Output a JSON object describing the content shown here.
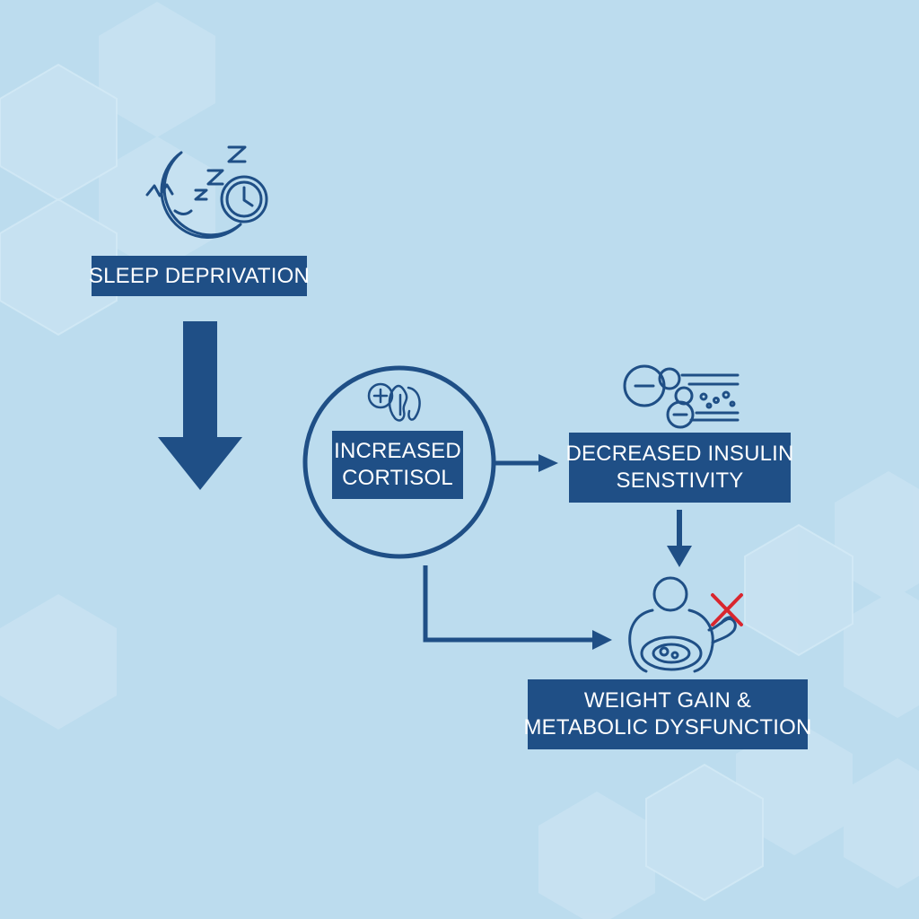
{
  "colors": {
    "background": "#bcdcee",
    "primary": "#1f4f86",
    "label_text": "#ffffff",
    "alert": "#d9262e"
  },
  "nodes": {
    "sleep": {
      "icon": "moon-sleep-clock-icon",
      "label": "SLEEP DEPRIVATION"
    },
    "cortisol": {
      "icon": "adrenal-gland-icon",
      "line1": "INCREASED",
      "line2": "CORTISOL"
    },
    "insulin": {
      "icon": "insulin-receptor-blood-vessel-icon",
      "line1": "DECREASED INSULIN",
      "line2": "SENSTIVITY"
    },
    "weight": {
      "icon": "overweight-person-icon",
      "line1": "WEIGHT GAIN &",
      "line2": "METABOLIC DYSFUNCTION"
    }
  },
  "edges": [
    {
      "from": "sleep",
      "to": "cortisol"
    },
    {
      "from": "cortisol",
      "to": "insulin"
    },
    {
      "from": "insulin",
      "to": "weight"
    },
    {
      "from": "cortisol",
      "to": "weight"
    }
  ]
}
